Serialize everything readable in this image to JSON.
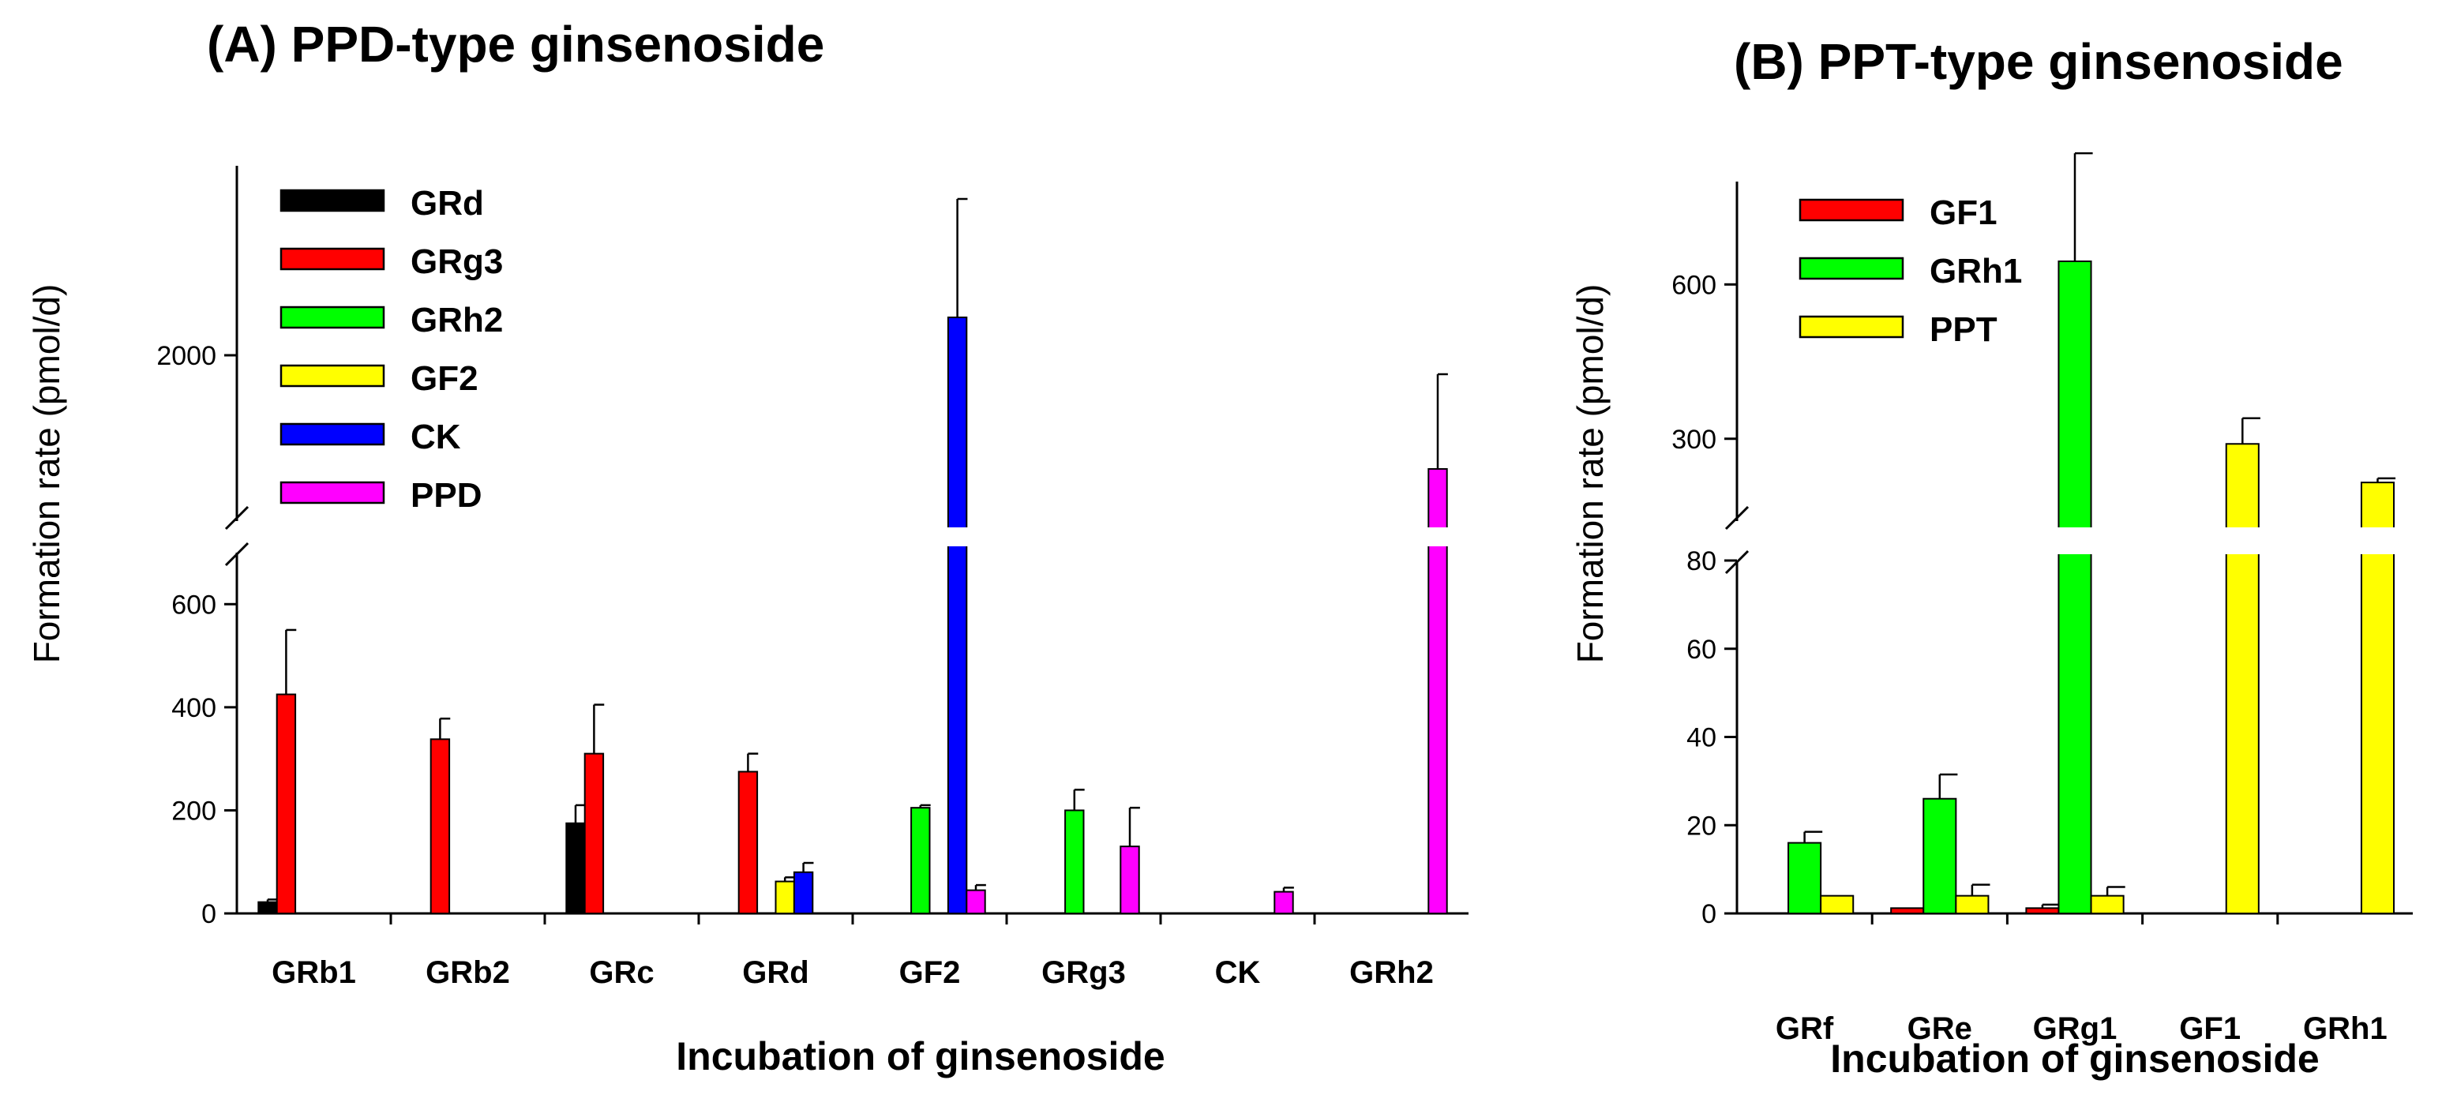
{
  "chart_data": [
    {
      "type": "bar",
      "title": "(A) PPD-type ginsenoside",
      "xlabel": "Incubation of ginsenoside",
      "ylabel": "Formation rate (pmol/d)",
      "categories": [
        "GRb1",
        "GRb2",
        "GRc",
        "GRd",
        "GF2",
        "GRg3",
        "CK",
        "GRh2"
      ],
      "y_break": {
        "lower_range": [
          0,
          700
        ],
        "upper_range": [
          1650,
          2400
        ]
      },
      "lower_ticks": [
        0,
        200,
        400,
        600
      ],
      "upper_ticks": [
        2000
      ],
      "legend_position": "top-left",
      "series": [
        {
          "name": "GRd",
          "color": "#000000",
          "values": [
            22,
            0,
            175,
            null,
            null,
            null,
            null,
            null
          ],
          "errors": [
            5,
            0,
            35,
            null,
            null,
            null,
            null,
            null
          ]
        },
        {
          "name": "GRg3",
          "color": "#ff0000",
          "values": [
            425,
            338,
            310,
            275,
            null,
            null,
            null,
            null
          ],
          "errors": [
            125,
            40,
            95,
            35,
            null,
            null,
            null,
            null
          ]
        },
        {
          "name": "GRh2",
          "color": "#00ff00",
          "values": [
            0,
            0,
            0,
            0,
            205,
            200,
            null,
            null
          ],
          "errors": [
            0,
            0,
            0,
            0,
            5,
            40,
            null,
            null
          ]
        },
        {
          "name": "GF2",
          "color": "#ffff00",
          "values": [
            0,
            0,
            0,
            62,
            null,
            null,
            null,
            null
          ],
          "errors": [
            0,
            0,
            0,
            8,
            null,
            null,
            null,
            null
          ]
        },
        {
          "name": "CK",
          "color": "#0000ff",
          "values": [
            0,
            0,
            0,
            80,
            2080,
            0,
            null,
            null
          ],
          "errors": [
            0,
            0,
            0,
            18,
            250,
            0,
            null,
            null
          ]
        },
        {
          "name": "PPD",
          "color": "#ff00ff",
          "values": [
            0,
            0,
            0,
            0,
            45,
            130,
            42,
            1760
          ],
          "errors": [
            0,
            0,
            0,
            0,
            10,
            75,
            8,
            200
          ]
        }
      ]
    },
    {
      "type": "bar",
      "title": "(B) PPT-type ginsenoside",
      "xlabel": "Incubation of ginsenoside",
      "ylabel": "Formation rate (pmol/d)",
      "categories": [
        "GRf",
        "GRe",
        "GRg1",
        "GF1",
        "GRh1"
      ],
      "y_break": {
        "lower_range": [
          0,
          80
        ],
        "upper_range": [
          140,
          800
        ]
      },
      "lower_ticks": [
        0,
        20,
        40,
        60,
        80
      ],
      "upper_ticks": [
        300,
        600
      ],
      "legend_position": "top-left",
      "series": [
        {
          "name": "GF1",
          "color": "#ff0000",
          "values": [
            0,
            1.2,
            1.2,
            null,
            null
          ],
          "errors": [
            0,
            0,
            0.8,
            null,
            null
          ]
        },
        {
          "name": "GRh1",
          "color": "#00ff00",
          "values": [
            16,
            26,
            645,
            null,
            null
          ],
          "errors": [
            2.5,
            5.5,
            210,
            null,
            null
          ]
        },
        {
          "name": "PPT",
          "color": "#ffff00",
          "values": [
            4,
            4,
            4,
            290,
            215
          ],
          "errors": [
            0,
            2.5,
            2,
            50,
            8
          ]
        }
      ]
    }
  ]
}
